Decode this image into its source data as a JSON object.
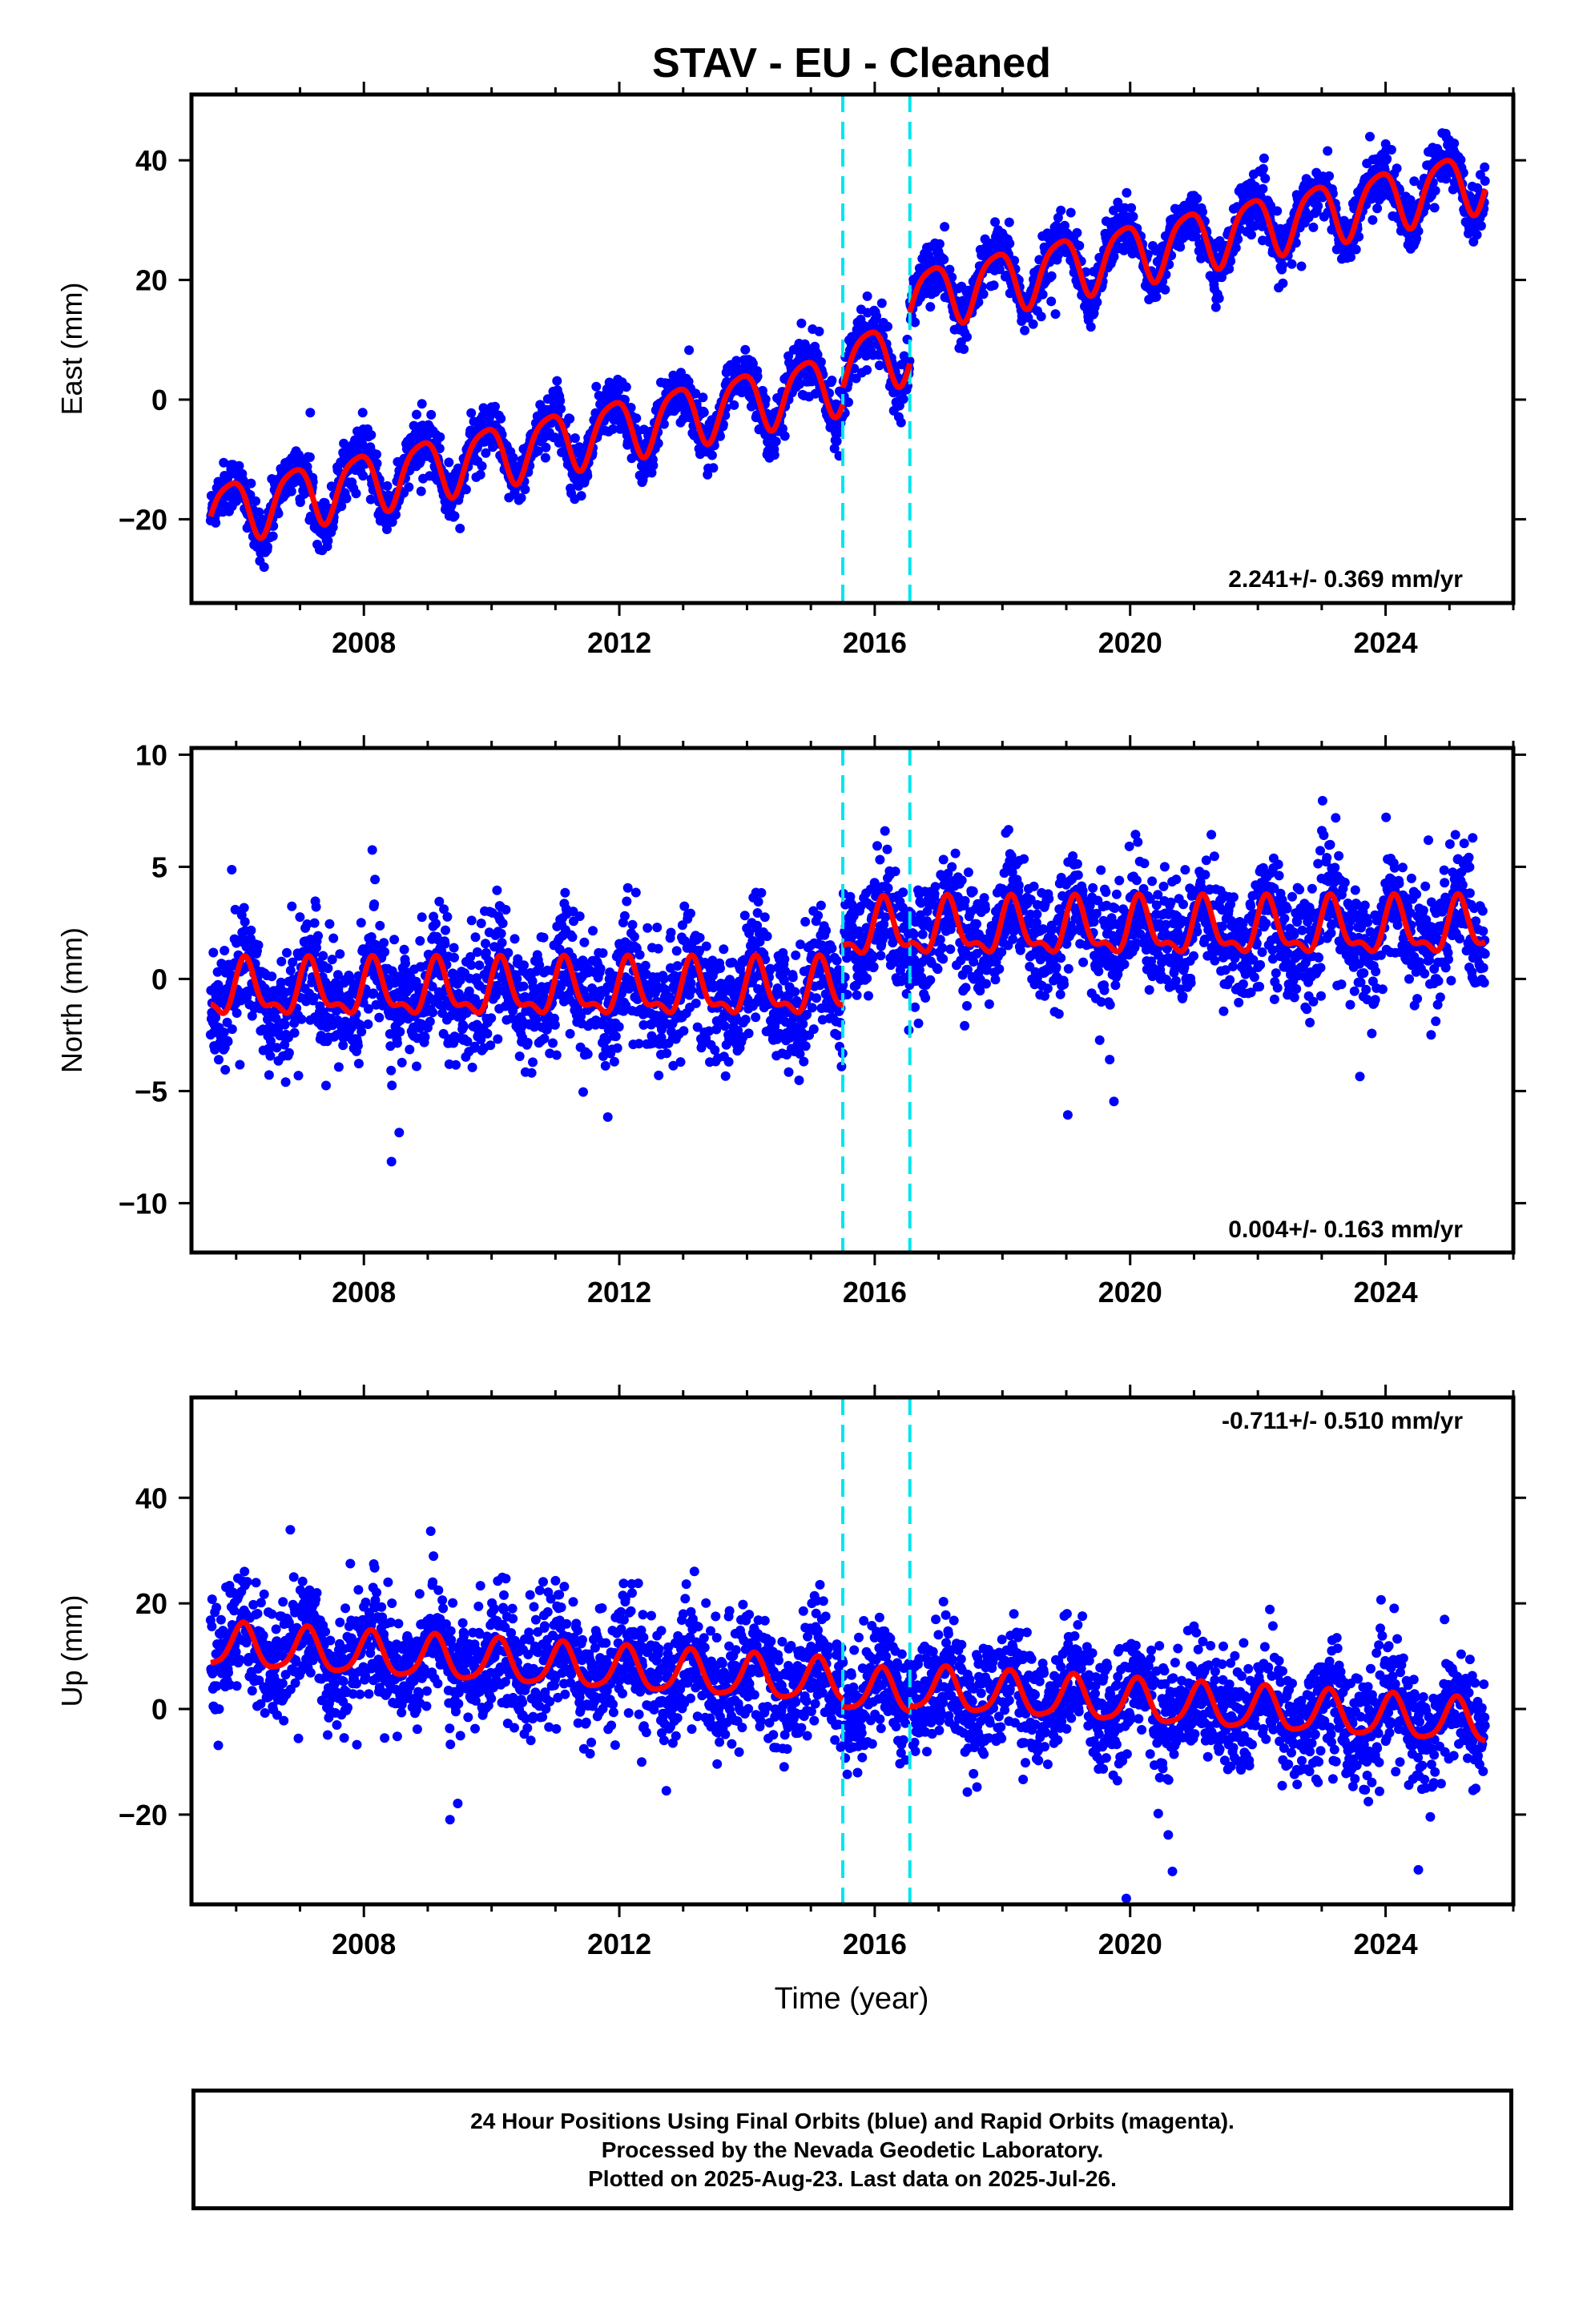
{
  "title": "STAV  - EU - Cleaned",
  "xlabel": "Time (year)",
  "colors": {
    "observations": "#0000ff",
    "model": "#ff0000",
    "offsets": "#00e5ee",
    "frame": "#000000"
  },
  "caption": {
    "line1": "24 Hour Positions Using Final Orbits (blue) and Rapid Orbits (magenta).",
    "line2": "Processed by the Nevada Geodetic Laboratory.",
    "line3": "Plotted on 2025-Aug-23. Last data on 2025-Jul-26."
  },
  "chart_data": [
    {
      "type": "scatter",
      "name": "east",
      "ylabel": "East (mm)",
      "rate_label": "2.241+/- 0.369 mm/yr",
      "xlim": [
        2005.3,
        2026.0
      ],
      "ylim": [
        -34,
        51
      ],
      "xticks": [
        2008,
        2012,
        2016,
        2020,
        2024
      ],
      "yticks": [
        -20,
        0,
        20,
        40
      ],
      "offset_epochs": [
        2015.5,
        2016.55
      ],
      "start": 2005.6,
      "end": 2025.56,
      "model": {
        "rate": 2.241,
        "annual_amp": 5.0,
        "annual_phase": 2.2,
        "semiannual_amp": 1.0,
        "segment_offsets": [
          {
            "from": 2005.6,
            "to": 2015.5,
            "y_at_start": -20.5
          },
          {
            "from": 2015.5,
            "to": 2016.55,
            "y_at_start": 2.0
          },
          {
            "from": 2016.55,
            "to": 2025.56,
            "y_at_start": 14.0
          }
        ]
      },
      "scatter_noise": 2.2
    },
    {
      "type": "scatter",
      "name": "north",
      "ylabel": "North (mm)",
      "rate_label": "0.004+/- 0.163 mm/yr",
      "xlim": [
        2005.3,
        2026.0
      ],
      "ylim": [
        -12.2,
        10.3
      ],
      "xticks": [
        2008,
        2012,
        2016,
        2020,
        2024
      ],
      "yticks": [
        -10,
        -5,
        0,
        5,
        10
      ],
      "offset_epochs": [
        2015.5,
        2016.55
      ],
      "start": 2005.6,
      "end": 2025.56,
      "model": {
        "rate": 0.004,
        "annual_amp": 1.1,
        "annual_phase": 0.6,
        "semiannual_amp": 0.5,
        "segment_offsets": [
          {
            "from": 2005.6,
            "to": 2015.5,
            "y_at_start": -1.6
          },
          {
            "from": 2015.5,
            "to": 2016.55,
            "y_at_start": 1.5
          },
          {
            "from": 2016.55,
            "to": 2025.56,
            "y_at_start": 1.3
          }
        ]
      },
      "scatter_noise": 1.3
    },
    {
      "type": "scatter",
      "name": "up",
      "ylabel": "Up (mm)",
      "rate_label": "-0.711+/- 0.510 mm/yr",
      "xlim": [
        2005.3,
        2026.0
      ],
      "ylim": [
        -37,
        59
      ],
      "xticks": [
        2008,
        2012,
        2016,
        2020,
        2024
      ],
      "yticks": [
        -20,
        0,
        20,
        40
      ],
      "offset_epochs": [
        2015.5,
        2016.55
      ],
      "start": 2005.6,
      "end": 2025.56,
      "model": {
        "rate": -0.711,
        "annual_amp": 4.0,
        "annual_phase": 0.9,
        "semiannual_amp": 0.8,
        "segment_offsets": [
          {
            "from": 2005.6,
            "to": 2015.5,
            "y_at_start": 8.0
          },
          {
            "from": 2015.5,
            "to": 2016.55,
            "y_at_start": 0.5
          },
          {
            "from": 2016.55,
            "to": 2025.56,
            "y_at_start": 0.0
          }
        ]
      },
      "scatter_noise": 5.5
    }
  ]
}
